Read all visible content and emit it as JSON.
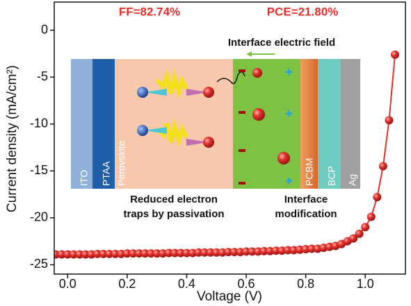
{
  "chart_data": {
    "type": "line",
    "xlabel": "Voltage (V)",
    "ylabel": "Current density (mA/cm²)",
    "xlim": [
      -0.045,
      1.135
    ],
    "ylim": [
      -26,
      3
    ],
    "xticks": [
      {
        "value": 0,
        "label": "0.0"
      },
      0.2,
      0.4,
      0.6,
      0.8,
      {
        "value": 1,
        "label": "1.0"
      }
    ],
    "yticks": [
      0,
      -5,
      -10,
      -15,
      -20,
      -25
    ],
    "x": [
      -0.04,
      -0.02,
      0,
      0.02,
      0.04,
      0.06,
      0.08,
      0.1,
      0.12,
      0.14,
      0.16,
      0.18,
      0.2,
      0.22,
      0.24,
      0.26,
      0.28,
      0.3,
      0.32,
      0.34,
      0.36,
      0.38,
      0.4,
      0.42,
      0.44,
      0.46,
      0.48,
      0.5,
      0.52,
      0.54,
      0.56,
      0.58,
      0.6,
      0.62,
      0.64,
      0.66,
      0.68,
      0.7,
      0.72,
      0.74,
      0.76,
      0.78,
      0.8,
      0.82,
      0.84,
      0.86,
      0.88,
      0.9,
      0.92,
      0.94,
      0.96,
      0.98,
      1,
      1.02,
      1.04,
      1.06,
      1.08,
      1.1
    ],
    "series": [
      {
        "color": "#e3302c",
        "values": [
          -23.9,
          -23.9,
          -23.9,
          -23.9,
          -23.9,
          -23.9,
          -23.9,
          -23.85,
          -23.85,
          -23.85,
          -23.85,
          -23.85,
          -23.8,
          -23.8,
          -23.8,
          -23.8,
          -23.8,
          -23.8,
          -23.8,
          -23.75,
          -23.75,
          -23.75,
          -23.75,
          -23.75,
          -23.7,
          -23.7,
          -23.7,
          -23.7,
          -23.7,
          -23.65,
          -23.65,
          -23.65,
          -23.6,
          -23.6,
          -23.6,
          -23.55,
          -23.55,
          -23.5,
          -23.5,
          -23.45,
          -23.45,
          -23.4,
          -23.35,
          -23.3,
          -23.3,
          -23.2,
          -23.1,
          -23.0,
          -22.8,
          -22.5,
          -22.2,
          -21.7,
          -21.0,
          -19.9,
          -17.8,
          -14.5,
          -9.6,
          -2.6
        ]
      }
    ],
    "annotations": {
      "ff": "FF=82.74%",
      "pce": "PCE=21.80%"
    },
    "inset": {
      "field": "Interface electric field",
      "layers": [
        "ITO",
        "PTAA",
        "Perovskite",
        "PCBM",
        "BCP",
        "Ag"
      ],
      "caption_left": [
        "Reduced electron",
        "traps by passivation"
      ],
      "caption_right": [
        "Interface",
        "modification"
      ]
    }
  }
}
